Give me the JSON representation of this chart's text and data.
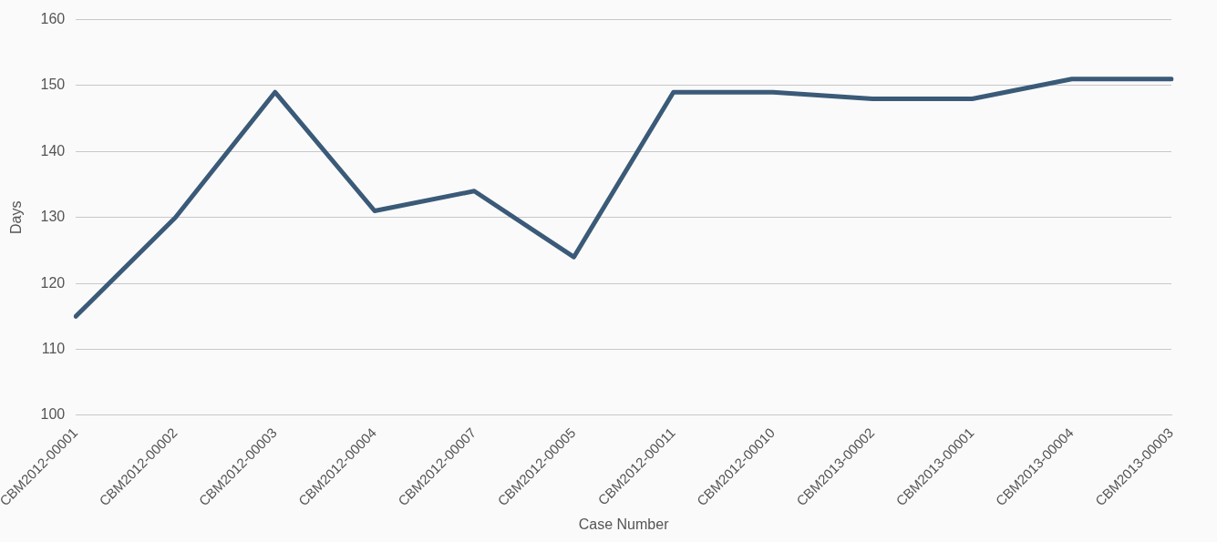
{
  "chart_data": {
    "type": "line",
    "xlabel": "Case Number",
    "ylabel": "Days",
    "categories": [
      "CBM2012-00001",
      "CBM2012-00002",
      "CBM2012-00003",
      "CBM2012-00004",
      "CBM2012-00007",
      "CBM2012-00005",
      "CBM2012-00011",
      "CBM2012-00010",
      "CBM2013-00002",
      "CBM2013-00001",
      "CBM2013-00004",
      "CBM2013-00003"
    ],
    "series": [
      {
        "color": "#3a5a78",
        "values": [
          115,
          130,
          149,
          131,
          134,
          124,
          149,
          149,
          148,
          148,
          151,
          151
        ]
      }
    ],
    "ylim": [
      100,
      160
    ],
    "yticks": [
      100,
      110,
      120,
      130,
      140,
      150,
      160
    ],
    "grid": "y",
    "legend": false,
    "marker": "none",
    "line_style": "solid"
  }
}
